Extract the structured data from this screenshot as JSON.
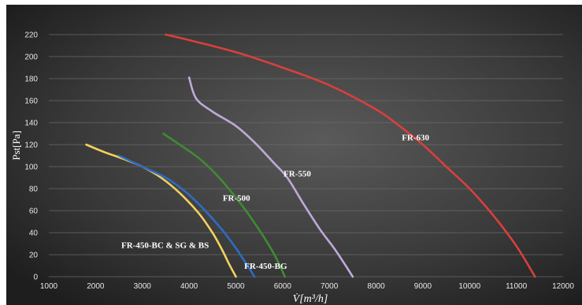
{
  "chart_data": {
    "type": "line",
    "title": "",
    "xlabel": "V̇[m³/h]",
    "ylabel": "Pst[Pa]",
    "xlim": [
      1000,
      12000
    ],
    "ylim": [
      0,
      230
    ],
    "x_ticks": [
      "1000",
      "2000",
      "3000",
      "4000",
      "5000",
      "6000",
      "7000",
      "8000",
      "9000",
      "10000",
      "11000",
      "12000"
    ],
    "y_ticks": [
      "0",
      "20",
      "40",
      "60",
      "80",
      "100",
      "120",
      "140",
      "160",
      "180",
      "200",
      "220"
    ],
    "grid": true,
    "background": "dark-radial",
    "series": [
      {
        "name": "FR-450-BC & SG & BS",
        "color": "#f2d25b",
        "points": [
          [
            1800,
            120
          ],
          [
            2200,
            113
          ],
          [
            2600,
            107
          ],
          [
            3000,
            100
          ],
          [
            3400,
            90
          ],
          [
            3800,
            76
          ],
          [
            4200,
            58
          ],
          [
            4500,
            40
          ],
          [
            4700,
            25
          ],
          [
            4850,
            12
          ],
          [
            5000,
            0
          ]
        ]
      },
      {
        "name": "FR-450-BG",
        "color": "#2f6bc2",
        "points": [
          [
            2500,
            110
          ],
          [
            3000,
            100
          ],
          [
            3500,
            90
          ],
          [
            3900,
            78
          ],
          [
            4300,
            62
          ],
          [
            4700,
            43
          ],
          [
            5000,
            26
          ],
          [
            5250,
            10
          ],
          [
            5400,
            0
          ]
        ]
      },
      {
        "name": "FR-500",
        "color": "#3f8a32",
        "points": [
          [
            3450,
            130
          ],
          [
            3800,
            120
          ],
          [
            4200,
            108
          ],
          [
            4600,
            92
          ],
          [
            5000,
            72
          ],
          [
            5300,
            55
          ],
          [
            5600,
            36
          ],
          [
            5850,
            18
          ],
          [
            6050,
            0
          ]
        ]
      },
      {
        "name": "FR-550",
        "color": "#c0a9d8",
        "points": [
          [
            4000,
            181
          ],
          [
            4150,
            162
          ],
          [
            4500,
            150
          ],
          [
            5000,
            137
          ],
          [
            5400,
            122
          ],
          [
            5800,
            104
          ],
          [
            6100,
            90
          ],
          [
            6450,
            66
          ],
          [
            6800,
            43
          ],
          [
            7100,
            26
          ],
          [
            7350,
            10
          ],
          [
            7500,
            0
          ]
        ]
      },
      {
        "name": "FR-630",
        "color": "#d9403b",
        "points": [
          [
            3500,
            220
          ],
          [
            4000,
            215
          ],
          [
            5000,
            204
          ],
          [
            6000,
            190
          ],
          [
            7000,
            174
          ],
          [
            8000,
            152
          ],
          [
            8500,
            137
          ],
          [
            9000,
            120
          ],
          [
            9500,
            100
          ],
          [
            10000,
            80
          ],
          [
            10500,
            56
          ],
          [
            11000,
            28
          ],
          [
            11400,
            0
          ]
        ]
      }
    ],
    "annotations": [
      {
        "text": "FR-630",
        "x": 8550,
        "y": 124
      },
      {
        "text": "FR-550",
        "x": 6020,
        "y": 91
      },
      {
        "text": "FR-500",
        "x": 4720,
        "y": 69
      },
      {
        "text": "FR-450-BC & SG & BS",
        "x": 2550,
        "y": 26
      },
      {
        "text": "FR-450-BG",
        "x": 5180,
        "y": 7
      }
    ]
  }
}
